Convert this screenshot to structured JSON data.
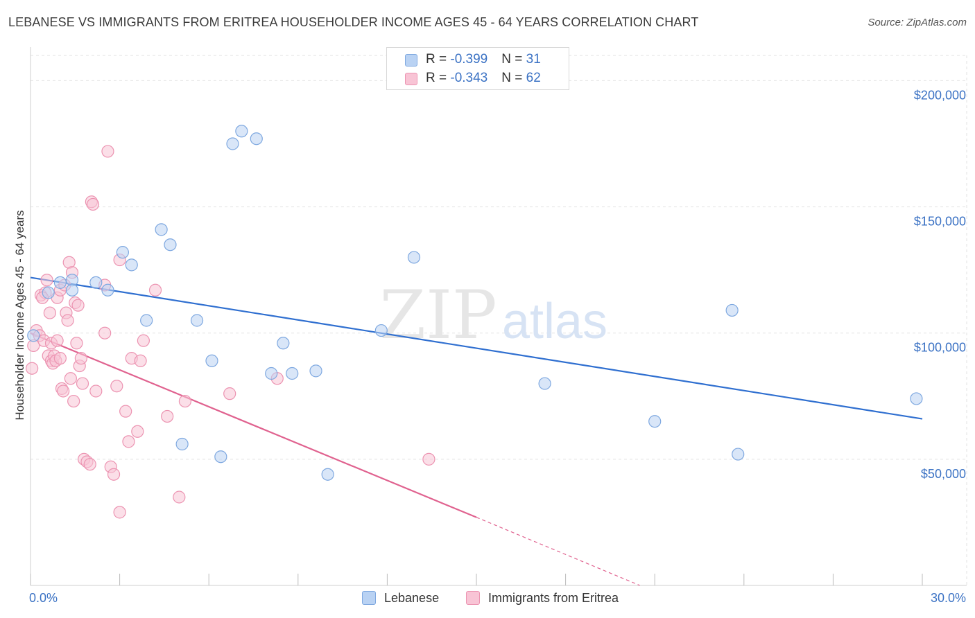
{
  "title": "LEBANESE VS IMMIGRANTS FROM ERITREA HOUSEHOLDER INCOME AGES 45 - 64 YEARS CORRELATION CHART",
  "source": "Source: ZipAtlas.com",
  "watermark": {
    "zip": "ZIP",
    "atlas": "atlas"
  },
  "legend_top": {
    "rows": [
      {
        "r_label": "R = ",
        "r_value": "-0.399",
        "n_label": "N = ",
        "n_value": "31"
      },
      {
        "r_label": "R = ",
        "r_value": "-0.343",
        "n_label": "N = ",
        "n_value": "62"
      }
    ]
  },
  "colors": {
    "lebanese_fill": "#b9d2f3",
    "lebanese_stroke": "#7ea8e0",
    "lebanese_line": "#2f6fd0",
    "eritrea_fill": "#f8c4d5",
    "eritrea_stroke": "#ec93b1",
    "eritrea_line": "#e0628f",
    "tick_text": "#3b72c4",
    "grid": "#e2e2e2"
  },
  "chart_data": {
    "type": "scatter",
    "title": "LEBANESE VS IMMIGRANTS FROM ERITREA HOUSEHOLDER INCOME AGES 45 - 64 YEARS CORRELATION CHART",
    "xlabel": "",
    "ylabel": "Householder Income Ages 45 - 64 years",
    "xlim": [
      0,
      30
    ],
    "ylim": [
      0,
      210000
    ],
    "x_tick_labels": [
      "0.0%",
      "30.0%"
    ],
    "y_ticks": [
      {
        "value": 50000,
        "label": "$50,000"
      },
      {
        "value": 100000,
        "label": "$100,000"
      },
      {
        "value": 150000,
        "label": "$150,000"
      },
      {
        "value": 200000,
        "label": "$200,000"
      }
    ],
    "grid": true,
    "legend_position": "bottom",
    "series": [
      {
        "name": "Lebanese",
        "r": -0.399,
        "n": 31,
        "trend": {
          "x": [
            0,
            30
          ],
          "y": [
            122000,
            66000
          ]
        },
        "points": [
          [
            0.1,
            99000
          ],
          [
            0.6,
            116000
          ],
          [
            1.0,
            120000
          ],
          [
            1.4,
            121000
          ],
          [
            1.4,
            117000
          ],
          [
            2.2,
            120000
          ],
          [
            2.6,
            117000
          ],
          [
            3.1,
            132000
          ],
          [
            3.4,
            127000
          ],
          [
            3.9,
            105000
          ],
          [
            4.4,
            141000
          ],
          [
            4.7,
            135000
          ],
          [
            5.1,
            56000
          ],
          [
            5.6,
            105000
          ],
          [
            6.1,
            89000
          ],
          [
            6.4,
            51000
          ],
          [
            6.8,
            175000
          ],
          [
            7.1,
            180000
          ],
          [
            7.6,
            177000
          ],
          [
            8.1,
            84000
          ],
          [
            8.5,
            96000
          ],
          [
            8.8,
            84000
          ],
          [
            9.6,
            85000
          ],
          [
            10.0,
            44000
          ],
          [
            11.8,
            101000
          ],
          [
            12.9,
            130000
          ],
          [
            17.3,
            80000
          ],
          [
            21.0,
            65000
          ],
          [
            23.6,
            109000
          ],
          [
            23.8,
            52000
          ],
          [
            29.8,
            74000
          ]
        ]
      },
      {
        "name": "Immigrants from Eritrea",
        "r": -0.343,
        "n": 62,
        "trend": {
          "x": [
            0,
            15
          ],
          "y": [
            100000,
            27000
          ]
        },
        "trend_dashed": {
          "x": [
            15,
            20.5
          ],
          "y": [
            27000,
            0
          ]
        },
        "points": [
          [
            0.05,
            86000
          ],
          [
            0.1,
            95000
          ],
          [
            0.2,
            101000
          ],
          [
            0.3,
            99000
          ],
          [
            0.35,
            115000
          ],
          [
            0.45,
            97000
          ],
          [
            0.5,
            116000
          ],
          [
            0.55,
            121000
          ],
          [
            0.6,
            91000
          ],
          [
            0.65,
            108000
          ],
          [
            0.7,
            89000
          ],
          [
            0.7,
            96000
          ],
          [
            0.75,
            88000
          ],
          [
            0.8,
            91000
          ],
          [
            0.85,
            89000
          ],
          [
            0.9,
            97000
          ],
          [
            0.9,
            114000
          ],
          [
            1.0,
            117000
          ],
          [
            1.05,
            78000
          ],
          [
            1.1,
            77000
          ],
          [
            1.15,
            119000
          ],
          [
            1.2,
            108000
          ],
          [
            1.25,
            105000
          ],
          [
            1.3,
            128000
          ],
          [
            1.35,
            82000
          ],
          [
            1.4,
            124000
          ],
          [
            1.45,
            73000
          ],
          [
            1.5,
            112000
          ],
          [
            1.55,
            96000
          ],
          [
            1.6,
            111000
          ],
          [
            1.65,
            87000
          ],
          [
            1.7,
            90000
          ],
          [
            1.75,
            80000
          ],
          [
            1.8,
            50000
          ],
          [
            1.9,
            49000
          ],
          [
            2.0,
            48000
          ],
          [
            2.05,
            152000
          ],
          [
            2.1,
            151000
          ],
          [
            2.2,
            77000
          ],
          [
            2.5,
            119000
          ],
          [
            2.5,
            100000
          ],
          [
            2.6,
            172000
          ],
          [
            2.7,
            47000
          ],
          [
            2.8,
            44000
          ],
          [
            2.9,
            79000
          ],
          [
            3.0,
            29000
          ],
          [
            3.0,
            129000
          ],
          [
            3.2,
            69000
          ],
          [
            3.3,
            57000
          ],
          [
            3.4,
            90000
          ],
          [
            3.6,
            61000
          ],
          [
            3.7,
            89000
          ],
          [
            3.8,
            97000
          ],
          [
            4.2,
            117000
          ],
          [
            4.6,
            67000
          ],
          [
            5.0,
            35000
          ],
          [
            5.2,
            73000
          ],
          [
            6.7,
            76000
          ],
          [
            8.3,
            82000
          ],
          [
            13.4,
            50000
          ],
          [
            0.4,
            114000
          ],
          [
            1.0,
            90000
          ]
        ]
      }
    ]
  }
}
